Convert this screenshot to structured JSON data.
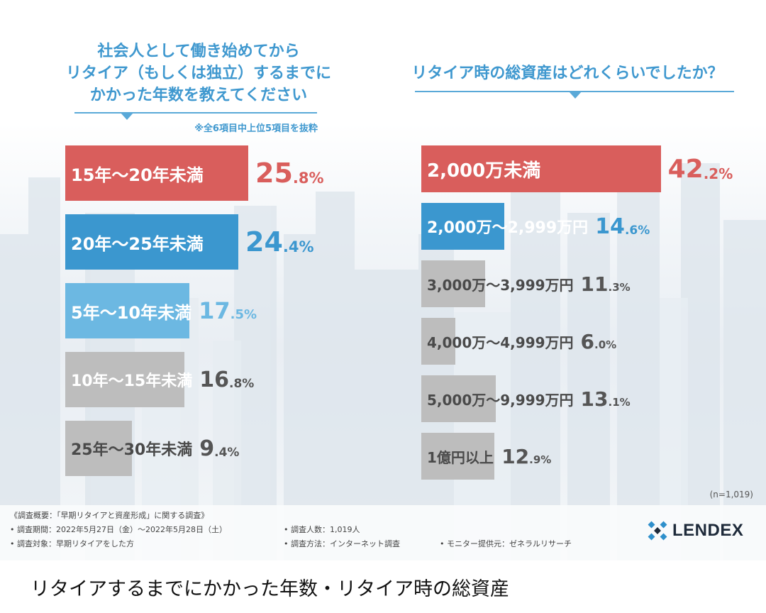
{
  "left_panel": {
    "title_lines": [
      "社会人として働き始めてから",
      "リタイア（もしくは独立）するまでに",
      "かかった年数を教えてください"
    ],
    "note": "※全6項目中上位5項目を抜粋"
  },
  "right_panel": {
    "title": "リタイア時の総資産はどれくらいでしたか？"
  },
  "sample_note": "(n=1,019)",
  "footer": {
    "overview": "《調査概要：「早期リタイアと資産形成」に関する調査》",
    "period": "• 調査期間：2022年5月27日（金）〜2022年5月28日（土）",
    "target": "• 調査対象：早期リタイアをした方",
    "count": "• 調査人数：1,019人",
    "method": "• 調査方法：インターネット調査",
    "provider": "• モニター提供元：ゼネラルリサーチ"
  },
  "logo": {
    "name": "LENDEX",
    "icon": "lendex-mark-icon"
  },
  "caption": "リタイアするまでにかかった年数・リタイア時の総資産",
  "colors": {
    "red": "#d95e5c",
    "blue": "#3b97cf",
    "light_blue": "#6cb8e2",
    "gray": "#bdbdbd",
    "title_blue": "#3f98cf"
  },
  "chart_data": [
    {
      "type": "bar",
      "orientation": "horizontal",
      "title": "社会人として働き始めてからリタイア（もしくは独立）するまでにかかった年数を教えてください",
      "categories": [
        "15年〜20年未満",
        "20年〜25年未満",
        "5年〜10年未満",
        "10年〜15年未満",
        "25年〜30年未満"
      ],
      "values": [
        25.8,
        24.4,
        17.5,
        16.8,
        9.4
      ],
      "value_labels": [
        {
          "int": "25",
          "dec": ".8%"
        },
        {
          "int": "24",
          "dec": ".4%"
        },
        {
          "int": "17",
          "dec": ".5%"
        },
        {
          "int": "16",
          "dec": ".8%"
        },
        {
          "int": "9",
          "dec": ".4%"
        }
      ],
      "unit": "%",
      "bar_colors": [
        "#d95e5c",
        "#3b97cf",
        "#6cb8e2",
        "#bdbdbd",
        "#bdbdbd"
      ]
    },
    {
      "type": "bar",
      "orientation": "horizontal",
      "title": "リタイア時の総資産はどれくらいでしたか？",
      "categories": [
        "2,000万未満",
        "2,000万〜2,999万円",
        "3,000万〜3,999万円",
        "4,000万〜4,999万円",
        "5,000万〜9,999万円",
        "1億円以上"
      ],
      "values": [
        42.2,
        14.6,
        11.3,
        6.0,
        13.1,
        12.9
      ],
      "value_labels": [
        {
          "int": "42",
          "dec": ".2%"
        },
        {
          "int": "14",
          "dec": ".6%"
        },
        {
          "int": "11",
          "dec": ".3%"
        },
        {
          "int": "6",
          "dec": ".0%"
        },
        {
          "int": "13",
          "dec": ".1%"
        },
        {
          "int": "12",
          "dec": ".9%"
        }
      ],
      "unit": "%",
      "bar_colors": [
        "#d95e5c",
        "#3b97cf",
        "#bdbdbd",
        "#bdbdbd",
        "#bdbdbd",
        "#bdbdbd"
      ]
    }
  ]
}
